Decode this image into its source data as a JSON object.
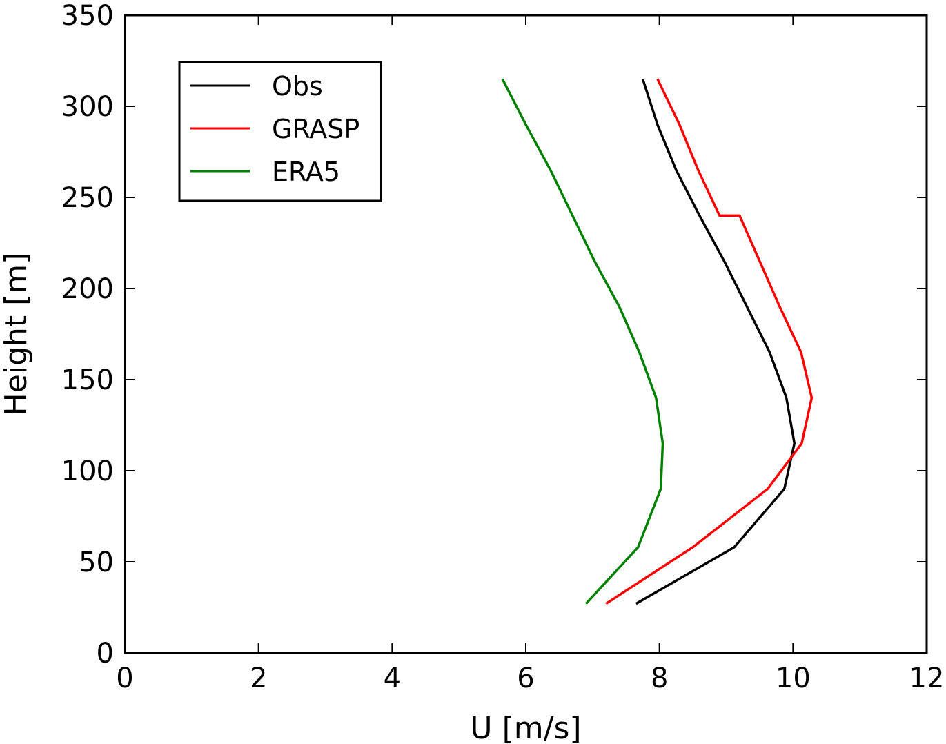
{
  "chart_data": {
    "type": "line",
    "title": "",
    "xlabel": "U [m/s]",
    "ylabel": "Height [m]",
    "xlim": [
      0,
      12
    ],
    "ylim": [
      0,
      350
    ],
    "xticks": [
      0,
      2,
      4,
      6,
      8,
      10,
      12
    ],
    "yticks": [
      0,
      50,
      100,
      150,
      200,
      250,
      300,
      350
    ],
    "grid": false,
    "legend_position": "upper-left",
    "series": [
      {
        "name": "Obs",
        "color": "#000000",
        "points": [
          [
            7.65,
            27
          ],
          [
            9.12,
            58
          ],
          [
            9.87,
            90
          ],
          [
            10.02,
            115
          ],
          [
            9.9,
            140
          ],
          [
            9.65,
            165
          ],
          [
            8.97,
            215
          ],
          [
            8.6,
            240
          ],
          [
            8.25,
            265
          ],
          [
            7.97,
            290
          ],
          [
            7.75,
            315
          ]
        ]
      },
      {
        "name": "GRASP",
        "color": "#ff0000",
        "points": [
          [
            7.2,
            27
          ],
          [
            8.5,
            58
          ],
          [
            9.62,
            90
          ],
          [
            10.13,
            115
          ],
          [
            10.28,
            140
          ],
          [
            10.12,
            165
          ],
          [
            9.8,
            190
          ],
          [
            9.2,
            240
          ],
          [
            8.58,
            265
          ],
          [
            8.9,
            240
          ],
          [
            8.3,
            290
          ],
          [
            7.97,
            315
          ]
        ]
      },
      {
        "name": "ERA5",
        "color": "#008000",
        "points": [
          [
            6.9,
            27
          ],
          [
            7.68,
            58
          ],
          [
            8.02,
            90
          ],
          [
            8.05,
            115
          ],
          [
            7.95,
            140
          ],
          [
            7.7,
            165
          ],
          [
            7.4,
            190
          ],
          [
            7.03,
            215
          ],
          [
            6.37,
            265
          ],
          [
            6.0,
            290
          ],
          [
            5.65,
            315
          ]
        ]
      }
    ]
  }
}
